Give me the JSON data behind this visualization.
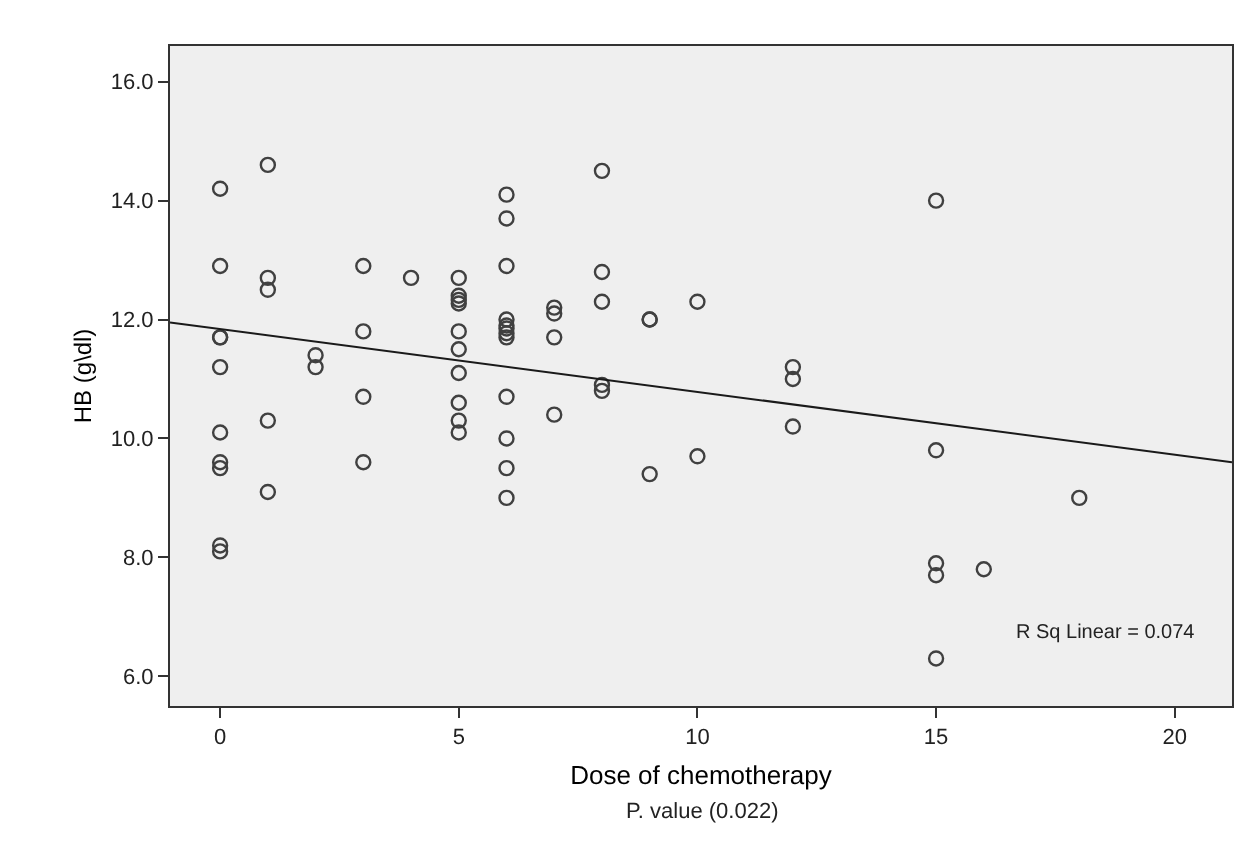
{
  "chart_data": {
    "type": "scatter",
    "xlabel": "Dose of chemotherapy",
    "ylabel": "HB (g\\dl)",
    "annotations": [
      "R Sq Linear = 0.074",
      "P. value (0.022)"
    ],
    "xlim": [
      -1.05,
      21.2
    ],
    "ylim": [
      5.5,
      16.6
    ],
    "xticks": [
      0,
      5,
      10,
      15,
      20
    ],
    "yticks": [
      {
        "value": 6,
        "label": "6.0"
      },
      {
        "value": 8,
        "label": "8.0"
      },
      {
        "value": 10,
        "label": "10.0"
      },
      {
        "value": 12,
        "label": "12.0"
      },
      {
        "value": 14,
        "label": "14.0"
      },
      {
        "value": 16,
        "label": "16.0"
      }
    ],
    "grid": false,
    "marker": "circle",
    "series": [
      {
        "color": "#404040",
        "x": [
          0,
          0,
          0,
          0,
          0,
          0,
          0,
          0,
          0,
          0,
          1,
          1,
          1,
          1,
          1,
          2,
          2,
          3,
          3,
          3,
          3,
          4,
          5,
          5,
          5,
          5,
          5,
          5,
          5,
          5,
          5,
          5,
          6,
          6,
          6,
          6,
          6,
          6,
          6,
          6,
          6,
          6,
          6,
          6,
          7,
          7,
          7,
          7,
          8,
          8,
          8,
          8,
          8,
          9,
          9,
          9,
          10,
          10,
          12,
          12,
          12,
          15,
          15,
          15,
          15,
          15,
          16,
          18
        ],
        "values": [
          14.2,
          12.9,
          11.7,
          11.7,
          11.2,
          10.1,
          9.6,
          9.5,
          8.2,
          8.1,
          14.6,
          12.7,
          12.5,
          10.3,
          9.1,
          11.4,
          11.2,
          12.9,
          11.8,
          10.7,
          9.6,
          12.7,
          12.7,
          12.4,
          12.33,
          12.27,
          11.8,
          11.5,
          11.1,
          10.6,
          10.3,
          10.1,
          14.1,
          13.7,
          12.9,
          12.0,
          11.9,
          11.85,
          11.77,
          11.7,
          10.7,
          10.0,
          9.5,
          9.0,
          12.2,
          12.1,
          11.7,
          10.4,
          14.5,
          12.8,
          12.3,
          10.9,
          10.8,
          12.0,
          12.0,
          9.4,
          12.3,
          9.7,
          11.2,
          11.0,
          10.2,
          14.0,
          9.8,
          7.9,
          7.7,
          6.3,
          7.8,
          9.0
        ]
      },
      {
        "type": "line",
        "color": "#1a1a1a",
        "line_style": "solid",
        "marker": "none",
        "x": [
          -1.05,
          21.2
        ],
        "values": [
          11.95,
          9.6
        ]
      }
    ]
  }
}
